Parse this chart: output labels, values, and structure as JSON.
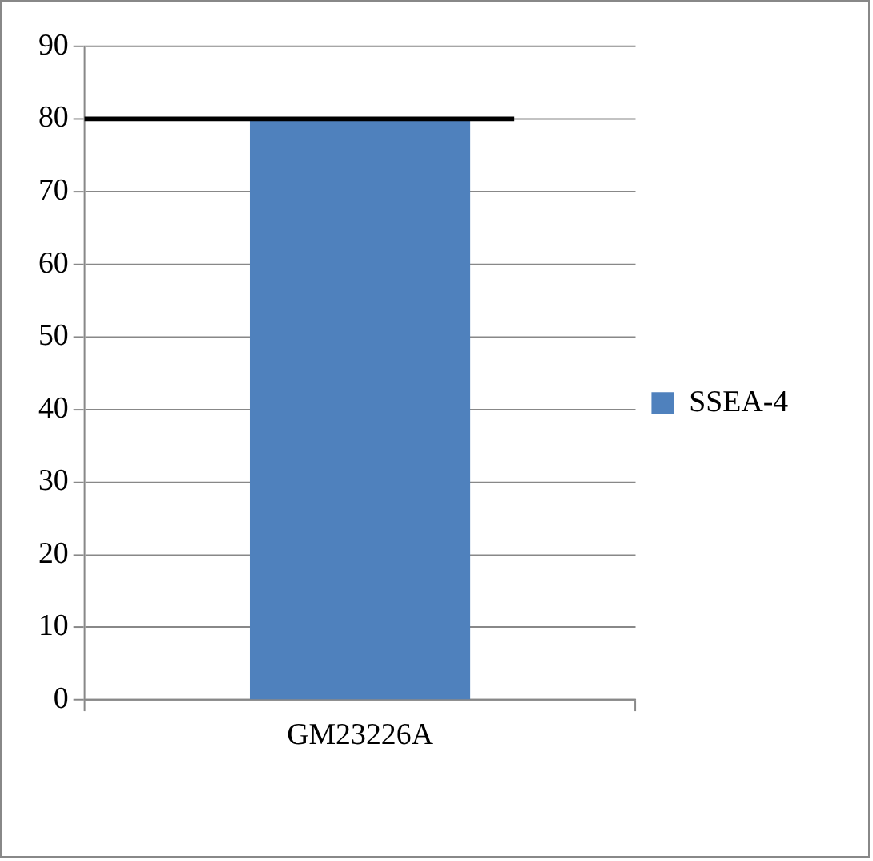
{
  "chart_data": {
    "type": "bar",
    "categories": [
      "GM23226A"
    ],
    "series": [
      {
        "name": "SSEA-4",
        "color": "#4f81bd",
        "values": [
          80
        ]
      }
    ],
    "ylim": [
      0,
      90
    ],
    "yticks": [
      0,
      10,
      20,
      30,
      40,
      50,
      60,
      70,
      80,
      90
    ],
    "grid": "y",
    "legend": "right",
    "ref_lines": [
      {
        "axis": "y",
        "value": 80,
        "color": "#000000"
      }
    ]
  }
}
